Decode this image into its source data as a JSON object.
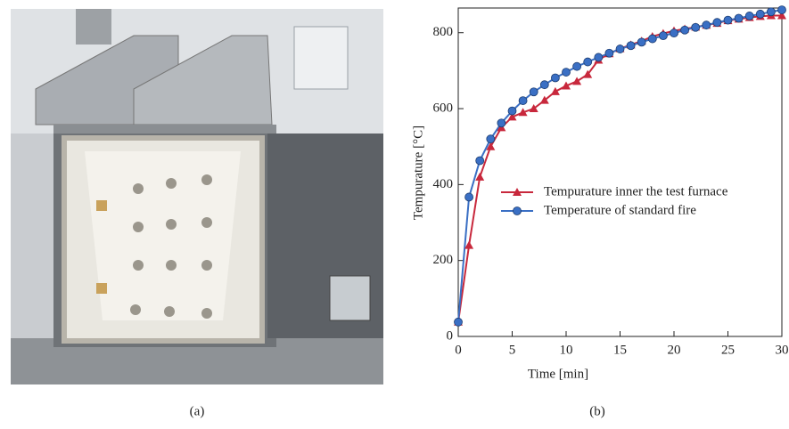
{
  "captions": [
    "(a)",
    "(b)"
  ],
  "chart_data": {
    "type": "line",
    "xlabel": "Time [min]",
    "ylabel": "Tempurature [°C]",
    "x": [
      0,
      1,
      2,
      3,
      4,
      5,
      6,
      7,
      8,
      9,
      10,
      11,
      12,
      13,
      14,
      15,
      16,
      17,
      18,
      19,
      20,
      21,
      22,
      23,
      24,
      25,
      26,
      27,
      28,
      29,
      30
    ],
    "series": [
      {
        "name": "Tempurature inner the test furnace",
        "color": "#c8283c",
        "marker": "triangle",
        "values": [
          38,
          240,
          420,
          500,
          550,
          578,
          590,
          600,
          622,
          645,
          660,
          672,
          690,
          728,
          745,
          758,
          768,
          778,
          790,
          798,
          805,
          810,
          815,
          820,
          825,
          832,
          836,
          840,
          843,
          845,
          845
        ]
      },
      {
        "name": "Temperature of standard fire",
        "color": "#3a6fc4",
        "marker": "circle",
        "values": [
          38,
          367,
          463,
          520,
          562,
          594,
          621,
          644,
          663,
          681,
          696,
          711,
          723,
          735,
          746,
          757,
          766,
          775,
          784,
          792,
          799,
          807,
          814,
          820,
          827,
          833,
          838,
          844,
          849,
          855,
          860
        ]
      }
    ],
    "xlim": [
      0,
      30
    ],
    "xticks": [
      0,
      5,
      10,
      15,
      20,
      25,
      30
    ],
    "ylim": [
      0,
      865
    ],
    "yticks": [
      0,
      200,
      400,
      600,
      800
    ],
    "grid": false,
    "legend": "center right"
  }
}
